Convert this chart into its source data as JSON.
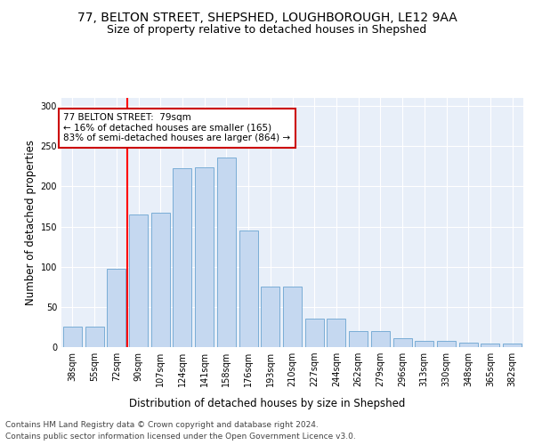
{
  "title_line1": "77, BELTON STREET, SHEPSHED, LOUGHBOROUGH, LE12 9AA",
  "title_line2": "Size of property relative to detached houses in Shepshed",
  "xlabel": "Distribution of detached houses by size in Shepshed",
  "ylabel": "Number of detached properties",
  "footer_line1": "Contains HM Land Registry data © Crown copyright and database right 2024.",
  "footer_line2": "Contains public sector information licensed under the Open Government Licence v3.0.",
  "bar_color": "#c5d8f0",
  "bar_edge_color": "#7aadd6",
  "red_line_x": 2,
  "annotation_title": "77 BELTON STREET:  79sqm",
  "annotation_line2": "← 16% of detached houses are smaller (165)",
  "annotation_line3": "83% of semi-detached houses are larger (864) →",
  "annotation_box_color": "#ffffff",
  "annotation_border_color": "#cc0000",
  "categories": [
    "38sqm",
    "55sqm",
    "72sqm",
    "90sqm",
    "107sqm",
    "124sqm",
    "141sqm",
    "158sqm",
    "176sqm",
    "193sqm",
    "210sqm",
    "227sqm",
    "244sqm",
    "262sqm",
    "279sqm",
    "296sqm",
    "313sqm",
    "330sqm",
    "348sqm",
    "365sqm",
    "382sqm"
  ],
  "values": [
    25,
    25,
    97,
    165,
    167,
    223,
    224,
    236,
    145,
    75,
    75,
    35,
    35,
    20,
    20,
    11,
    8,
    8,
    5,
    4,
    4
  ],
  "ylim": [
    0,
    310
  ],
  "yticks": [
    0,
    50,
    100,
    150,
    200,
    250,
    300
  ],
  "background_color": "#e8eff9",
  "grid_color": "#ffffff",
  "title_fontsize": 10,
  "subtitle_fontsize": 9,
  "axis_label_fontsize": 8.5,
  "tick_fontsize": 7,
  "footer_fontsize": 6.5,
  "annotation_fontsize": 7.5
}
